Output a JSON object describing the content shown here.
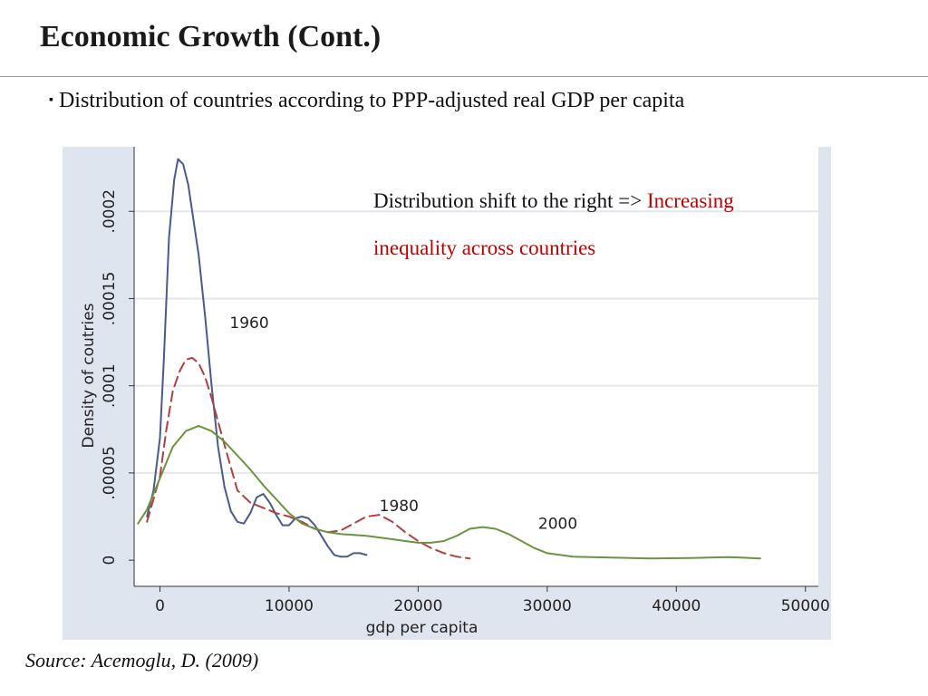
{
  "slide": {
    "title": "Economic Growth (Cont.)",
    "bullet_marker": "▪",
    "bullet": "Distribution of countries according to PPP-adjusted real GDP per capita",
    "source": "Source: Acemoglu, D.  (2009)",
    "annotation": {
      "black": "Distribution shift to the right =>",
      "red_1": "Increasing",
      "red_2": "inequality across countries",
      "red_color": "#c00000"
    }
  },
  "chart_data": {
    "type": "line",
    "xlabel": "gdp per capita",
    "ylabel": "Density of coutries",
    "xlim": [
      -2000,
      51000
    ],
    "ylim": [
      -1.5e-05,
      0.000237
    ],
    "xticks": [
      {
        "v": 0,
        "label": "0"
      },
      {
        "v": 10000,
        "label": "10000"
      },
      {
        "v": 20000,
        "label": "20000"
      },
      {
        "v": 30000,
        "label": "30000"
      },
      {
        "v": 40000,
        "label": "40000"
      },
      {
        "v": 50000,
        "label": "50000"
      }
    ],
    "yticks": [
      {
        "v": 0,
        "label": "0"
      },
      {
        "v": 5e-05,
        "label": ".00005"
      },
      {
        "v": 0.0001,
        "label": ".0001"
      },
      {
        "v": 0.00015,
        "label": ".00015"
      },
      {
        "v": 0.0002,
        "label": ".0002"
      }
    ],
    "grid": true,
    "plot_background": "#ffffff",
    "outer_background": "#dfe5ee",
    "series": [
      {
        "name": "1960",
        "color": "#4a5a8c",
        "dash": "solid",
        "label": {
          "text": "1960",
          "x": 5400,
          "y": 0.000133
        },
        "points": [
          [
            -1000,
            2.5e-05
          ],
          [
            -500,
            4e-05
          ],
          [
            0,
            7e-05
          ],
          [
            300,
            0.000115
          ],
          [
            700,
            0.000185
          ],
          [
            1100,
            0.000218
          ],
          [
            1400,
            0.00023
          ],
          [
            1800,
            0.000227
          ],
          [
            2200,
            0.000215
          ],
          [
            2600,
            0.000195
          ],
          [
            3000,
            0.000175
          ],
          [
            3500,
            0.00014
          ],
          [
            4000,
            0.0001
          ],
          [
            4500,
            6.5e-05
          ],
          [
            5000,
            4.2e-05
          ],
          [
            5500,
            2.8e-05
          ],
          [
            6000,
            2.2e-05
          ],
          [
            6500,
            2.1e-05
          ],
          [
            7000,
            2.7e-05
          ],
          [
            7500,
            3.6e-05
          ],
          [
            8000,
            3.8e-05
          ],
          [
            8500,
            3.3e-05
          ],
          [
            9000,
            2.6e-05
          ],
          [
            9500,
            2e-05
          ],
          [
            10000,
            2e-05
          ],
          [
            10500,
            2.4e-05
          ],
          [
            11000,
            2.5e-05
          ],
          [
            11500,
            2.4e-05
          ],
          [
            12000,
            2e-05
          ],
          [
            12500,
            1.4e-05
          ],
          [
            13000,
            8e-06
          ],
          [
            13500,
            3e-06
          ],
          [
            14000,
            2e-06
          ],
          [
            14500,
            2e-06
          ],
          [
            15000,
            4e-06
          ],
          [
            15500,
            4e-06
          ],
          [
            16000,
            3e-06
          ]
        ]
      },
      {
        "name": "1980",
        "color": "#b04040",
        "dash": "11 6",
        "label": {
          "text": "1980",
          "x": 17000,
          "y": 2.8e-05
        },
        "points": [
          [
            -1000,
            2.2e-05
          ],
          [
            0,
            4.8e-05
          ],
          [
            500,
            7.5e-05
          ],
          [
            1000,
            9.7e-05
          ],
          [
            1500,
            0.000108
          ],
          [
            2000,
            0.000115
          ],
          [
            2500,
            0.000116
          ],
          [
            3000,
            0.000113
          ],
          [
            3500,
            0.000105
          ],
          [
            4000,
            9.3e-05
          ],
          [
            5000,
            6.6e-05
          ],
          [
            6000,
            4e-05
          ],
          [
            7000,
            3.3e-05
          ],
          [
            8000,
            3e-05
          ],
          [
            9000,
            2.7e-05
          ],
          [
            10000,
            2.5e-05
          ],
          [
            11000,
            2.2e-05
          ],
          [
            12000,
            1.8e-05
          ],
          [
            13000,
            1.6e-05
          ],
          [
            14000,
            1.7e-05
          ],
          [
            15000,
            2.1e-05
          ],
          [
            16000,
            2.5e-05
          ],
          [
            17000,
            2.6e-05
          ],
          [
            18000,
            2.2e-05
          ],
          [
            19000,
            1.6e-05
          ],
          [
            20000,
            1.1e-05
          ],
          [
            21000,
            7e-06
          ],
          [
            22000,
            4e-06
          ],
          [
            23000,
            2e-06
          ],
          [
            24000,
            1e-06
          ]
        ]
      },
      {
        "name": "2000",
        "color": "#6a9440",
        "dash": "solid",
        "label": {
          "text": "2000",
          "x": 29300,
          "y": 1.8e-05
        },
        "points": [
          [
            -1700,
            2.1e-05
          ],
          [
            -1000,
            2.9e-05
          ],
          [
            0,
            4.7e-05
          ],
          [
            1000,
            6.5e-05
          ],
          [
            2000,
            7.4e-05
          ],
          [
            3000,
            7.7e-05
          ],
          [
            4000,
            7.4e-05
          ],
          [
            5000,
            6.8e-05
          ],
          [
            6000,
            6e-05
          ],
          [
            7000,
            5.2e-05
          ],
          [
            8000,
            4.3e-05
          ],
          [
            9000,
            3.5e-05
          ],
          [
            10000,
            2.7e-05
          ],
          [
            11000,
            2.1e-05
          ],
          [
            12000,
            1.8e-05
          ],
          [
            13000,
            1.6e-05
          ],
          [
            14000,
            1.5e-05
          ],
          [
            16000,
            1.4e-05
          ],
          [
            18000,
            1.2e-05
          ],
          [
            19000,
            1.1e-05
          ],
          [
            20000,
            1e-05
          ],
          [
            21000,
            1e-05
          ],
          [
            22000,
            1.1e-05
          ],
          [
            23000,
            1.4e-05
          ],
          [
            24000,
            1.8e-05
          ],
          [
            25000,
            1.9e-05
          ],
          [
            26000,
            1.8e-05
          ],
          [
            27000,
            1.5e-05
          ],
          [
            28000,
            1.1e-05
          ],
          [
            29000,
            7e-06
          ],
          [
            30000,
            4e-06
          ],
          [
            32000,
            2e-06
          ],
          [
            35000,
            1.5e-06
          ],
          [
            38000,
            1e-06
          ],
          [
            41000,
            1.2e-06
          ],
          [
            44000,
            1.8e-06
          ],
          [
            45000,
            1.5e-06
          ],
          [
            46500,
            1e-06
          ]
        ]
      }
    ]
  }
}
